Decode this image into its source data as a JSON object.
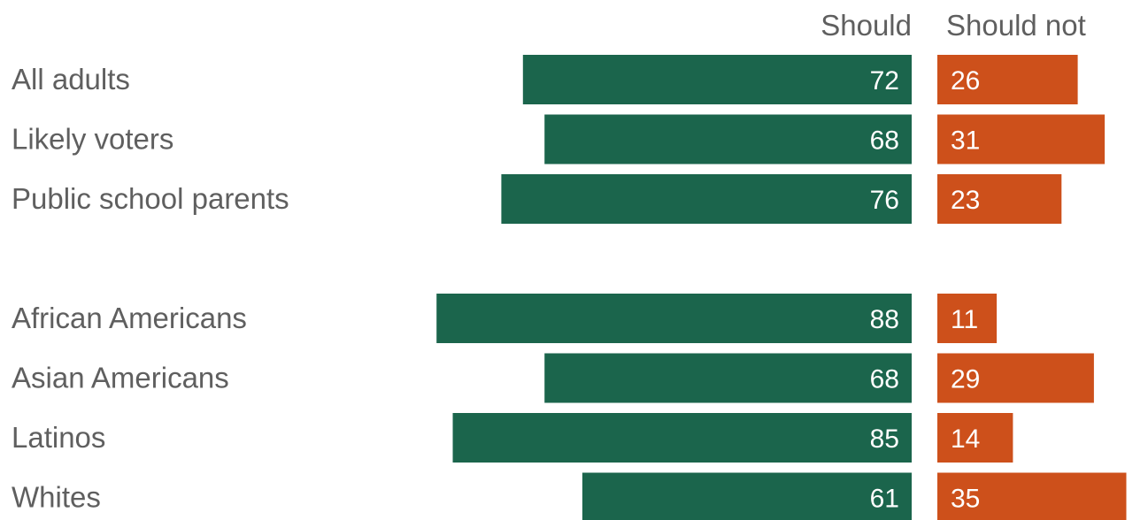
{
  "chart_data": {
    "type": "bar",
    "orientation": "horizontal-diverging",
    "title": "",
    "xlabel": "",
    "ylabel": "",
    "xlim": [
      0,
      100
    ],
    "grid": false,
    "legend": "none",
    "column_headers": [
      "Should",
      "Should not"
    ],
    "categories": [
      "All adults",
      "Likely voters",
      "Public school parents",
      "African Americans",
      "Asian Americans",
      "Latinos",
      "Whites"
    ],
    "groups": [
      [
        "All adults",
        "Likely voters",
        "Public school parents"
      ],
      [
        "African Americans",
        "Asian Americans",
        "Latinos",
        "Whites"
      ]
    ],
    "series": [
      {
        "name": "Should",
        "color": "#1b654c",
        "values": [
          72,
          68,
          76,
          88,
          68,
          85,
          61
        ]
      },
      {
        "name": "Should not",
        "color": "#cd501b",
        "values": [
          26,
          31,
          23,
          11,
          29,
          14,
          35
        ]
      }
    ]
  }
}
